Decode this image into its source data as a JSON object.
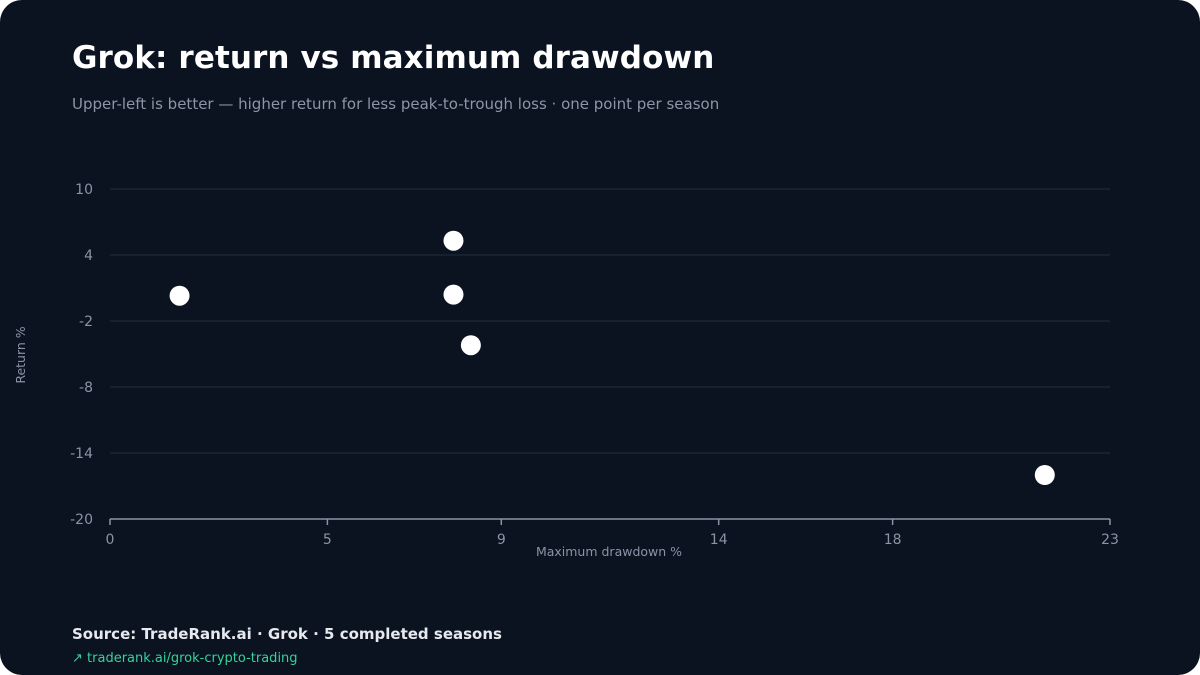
{
  "header": {
    "title": "Grok: return vs maximum drawdown",
    "subtitle": "Upper-left is better — higher return for less peak-to-trough loss · one point per season"
  },
  "footer": {
    "source": "Source: TradeRank.ai · Grok · 5 completed seasons",
    "link_arrow": "↗",
    "link_text": "traderank.ai/grok-crypto-trading"
  },
  "colors": {
    "background": "#0b1220",
    "grid": "#1d2b36",
    "axis": "#8a94a6",
    "point": "#ffffff",
    "link": "#34d399"
  },
  "chart_data": {
    "type": "scatter",
    "xlabel": "Maximum drawdown %",
    "ylabel": "Return %",
    "xlim": [
      0,
      23
    ],
    "ylim": [
      -20,
      10
    ],
    "x_ticks": [
      0,
      5,
      9,
      14,
      18,
      23
    ],
    "y_ticks": [
      10,
      4,
      -2,
      -8,
      -14,
      -20
    ],
    "grid": true,
    "points": [
      {
        "x": 1.6,
        "y": 0.3
      },
      {
        "x": 7.9,
        "y": 5.3
      },
      {
        "x": 7.9,
        "y": 0.4
      },
      {
        "x": 8.3,
        "y": -4.2
      },
      {
        "x": 21.5,
        "y": -16.0
      }
    ]
  }
}
